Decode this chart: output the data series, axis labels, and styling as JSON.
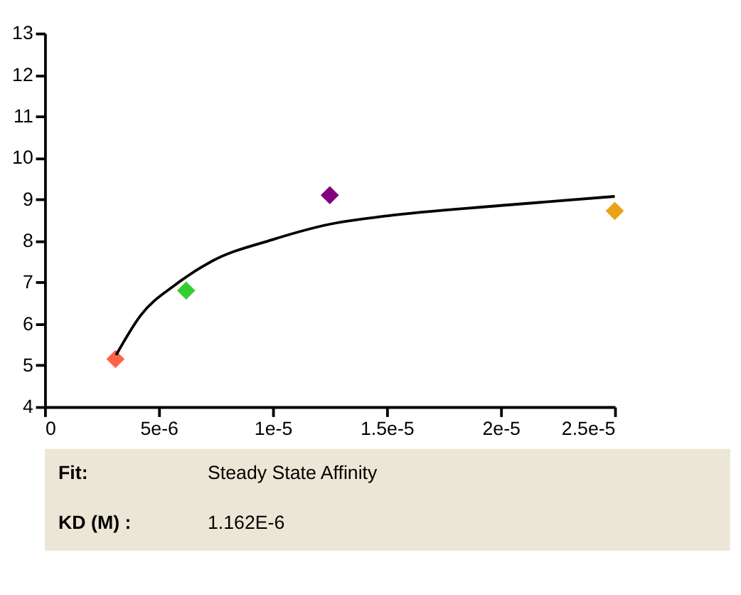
{
  "chart_data": {
    "type": "scatter",
    "series": [
      {
        "x": [
          3.1e-06,
          6.2e-06,
          1.25e-05,
          2.5e-05
        ],
        "values": [
          5.15,
          6.8,
          9.1,
          8.72
        ],
        "colors": [
          "#ff6347",
          "#33cc33",
          "#800080",
          "#e8a317"
        ],
        "marker": "diamond"
      },
      {
        "type": "line",
        "color": "#000000",
        "x": [
          3.13e-06,
          4.2e-06,
          5.75e-06,
          7.3e-06,
          1e-05,
          1.25e-05,
          1.5e-05,
          2e-05,
          2.5e-05
        ],
        "values": [
          5.25,
          6.2,
          6.95,
          7.5,
          8.03,
          8.4,
          8.6,
          8.85,
          9.07
        ],
        "marker": "none",
        "line_style": "solid"
      }
    ],
    "xlim": [
      0,
      2.5e-05
    ],
    "xticks": [
      0,
      {
        "value": 5e-06,
        "label": "5e-6"
      },
      {
        "value": 1e-05,
        "label": "1e-5"
      },
      {
        "value": 1.5e-05,
        "label": "1.5e-5"
      },
      {
        "value": 2e-05,
        "label": "2e-5"
      },
      {
        "value": 2.5e-05,
        "label": "2.5e-5"
      }
    ],
    "ylim": [
      4,
      13
    ],
    "yticks": [
      4,
      5,
      6,
      7,
      8,
      9,
      10,
      11,
      12,
      13
    ],
    "grid": false,
    "legend": false,
    "annotations": [
      "Fit:",
      "Steady State Affinity",
      "KD (M) :",
      "1.162E-6"
    ]
  }
}
